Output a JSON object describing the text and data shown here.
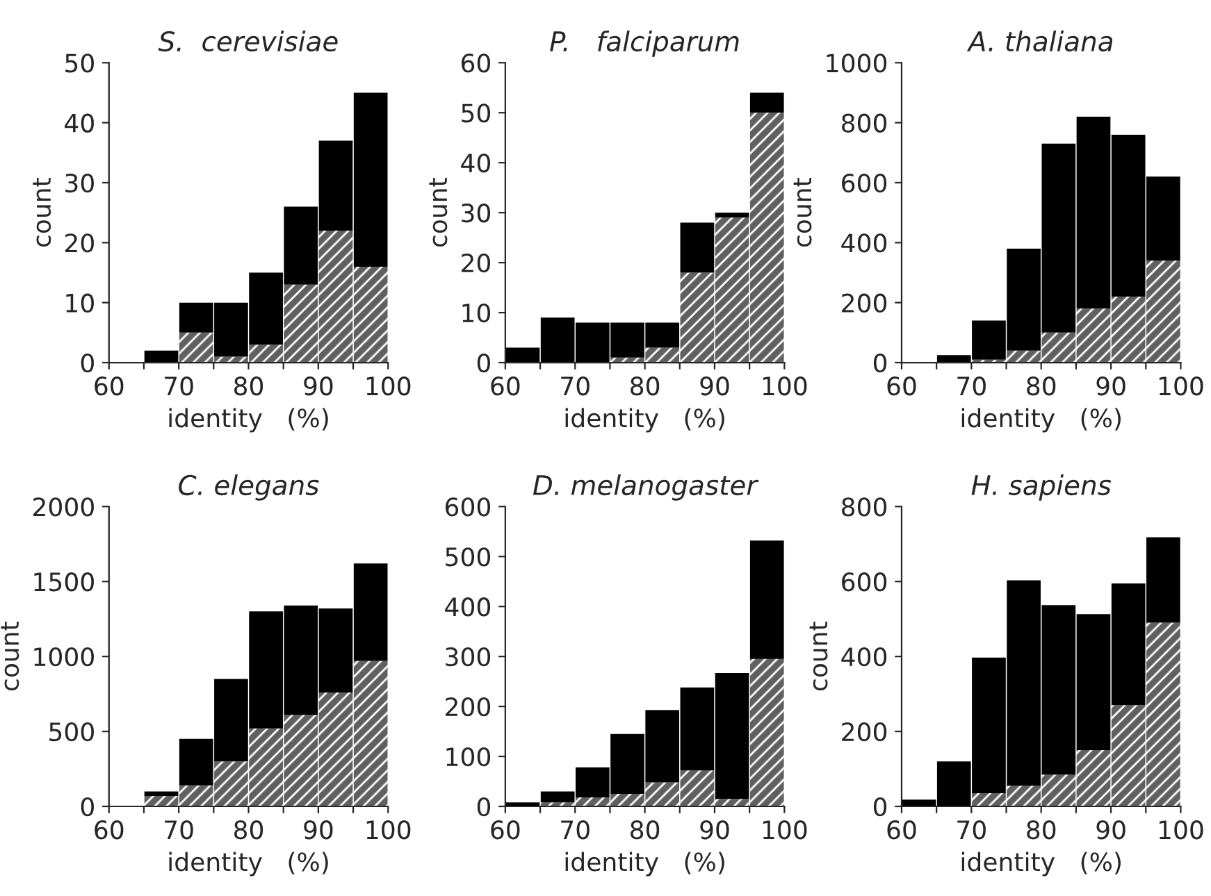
{
  "chart_data": [
    {
      "type": "bar",
      "title": "S.  cerevisiae",
      "xlabel": "identity   (%)",
      "ylabel": "count",
      "stacked": true,
      "x": [
        62.5,
        67.5,
        72.5,
        77.5,
        82.5,
        87.5,
        92.5,
        97.5
      ],
      "series": [
        {
          "color": "#606060",
          "values": [
            0,
            0,
            5,
            1,
            3,
            13,
            22,
            16
          ]
        },
        {
          "color": "#000000",
          "values": [
            0,
            2,
            5,
            9,
            12,
            13,
            15,
            29
          ]
        }
      ],
      "xlim": [
        60,
        100
      ],
      "xticks": [
        60,
        {
          "value": 65,
          "label": null
        },
        70,
        {
          "value": 75,
          "label": null
        },
        80,
        {
          "value": 85,
          "label": null
        },
        90,
        {
          "value": 95,
          "label": null
        },
        100
      ],
      "ylim": [
        0,
        50
      ],
      "yticks": [
        0,
        10,
        20,
        30,
        40,
        50
      ]
    },
    {
      "type": "bar",
      "title": "P.   falciparum",
      "xlabel": "identity   (%)",
      "ylabel": "count",
      "stacked": true,
      "x": [
        62.5,
        67.5,
        72.5,
        77.5,
        82.5,
        87.5,
        92.5,
        97.5
      ],
      "series": [
        {
          "color": "#606060",
          "values": [
            0,
            0,
            0,
            1,
            3,
            18,
            29,
            50
          ]
        },
        {
          "color": "#000000",
          "values": [
            3,
            9,
            8,
            7,
            5,
            10,
            1,
            4
          ]
        }
      ],
      "xlim": [
        60,
        100
      ],
      "xticks": [
        60,
        {
          "value": 65,
          "label": null
        },
        70,
        {
          "value": 75,
          "label": null
        },
        80,
        {
          "value": 85,
          "label": null
        },
        90,
        {
          "value": 95,
          "label": null
        },
        100
      ],
      "ylim": [
        0,
        60
      ],
      "yticks": [
        0,
        10,
        20,
        30,
        40,
        50,
        60
      ]
    },
    {
      "type": "bar",
      "title": "A. thaliana",
      "xlabel": "identity   (%)",
      "ylabel": "count",
      "stacked": true,
      "x": [
        62.5,
        67.5,
        72.5,
        77.5,
        82.5,
        87.5,
        92.5,
        97.5
      ],
      "series": [
        {
          "color": "#606060",
          "values": [
            0,
            0,
            10,
            40,
            100,
            180,
            220,
            340
          ]
        },
        {
          "color": "#000000",
          "values": [
            0,
            25,
            130,
            340,
            630,
            640,
            540,
            280
          ]
        }
      ],
      "xlim": [
        60,
        100
      ],
      "xticks": [
        60,
        {
          "value": 65,
          "label": null
        },
        70,
        {
          "value": 75,
          "label": null
        },
        80,
        {
          "value": 85,
          "label": null
        },
        90,
        {
          "value": 95,
          "label": null
        },
        100
      ],
      "ylim": [
        0,
        1000
      ],
      "yticks": [
        0,
        200,
        400,
        600,
        800,
        1000
      ]
    },
    {
      "type": "bar",
      "title": "C. elegans",
      "xlabel": "identity   (%)",
      "ylabel": "count",
      "stacked": true,
      "x": [
        62.5,
        67.5,
        72.5,
        77.5,
        82.5,
        87.5,
        92.5,
        97.5
      ],
      "series": [
        {
          "color": "#606060",
          "values": [
            0,
            70,
            140,
            300,
            520,
            610,
            760,
            970
          ]
        },
        {
          "color": "#000000",
          "values": [
            0,
            30,
            310,
            550,
            780,
            730,
            560,
            650
          ]
        }
      ],
      "xlim": [
        60,
        100
      ],
      "xticks": [
        60,
        {
          "value": 65,
          "label": null
        },
        70,
        {
          "value": 75,
          "label": null
        },
        80,
        {
          "value": 85,
          "label": null
        },
        90,
        {
          "value": 95,
          "label": null
        },
        100
      ],
      "ylim": [
        0,
        2000
      ],
      "yticks": [
        0,
        500,
        1000,
        1500,
        2000
      ]
    },
    {
      "type": "bar",
      "title": "D. melanogaster",
      "xlabel": "identity   (%)",
      "stacked": true,
      "x": [
        62.5,
        67.5,
        72.5,
        77.5,
        82.5,
        87.5,
        92.5,
        97.5
      ],
      "series": [
        {
          "color": "#606060",
          "values": [
            0,
            8,
            18,
            25,
            48,
            72,
            15,
            295
          ]
        },
        {
          "color": "#000000",
          "values": [
            8,
            22,
            60,
            120,
            145,
            166,
            252,
            237
          ]
        }
      ],
      "xlim": [
        60,
        100
      ],
      "xticks": [
        60,
        {
          "value": 65,
          "label": null
        },
        70,
        {
          "value": 75,
          "label": null
        },
        80,
        {
          "value": 85,
          "label": null
        },
        90,
        {
          "value": 95,
          "label": null
        },
        100
      ],
      "ylim": [
        0,
        600
      ],
      "yticks": [
        0,
        100,
        200,
        300,
        400,
        500,
        600
      ]
    },
    {
      "type": "bar",
      "title": "H. sapiens",
      "xlabel": "identity   (%)",
      "ylabel": "count",
      "stacked": true,
      "x": [
        62.5,
        67.5,
        72.5,
        77.5,
        82.5,
        87.5,
        92.5,
        97.5
      ],
      "series": [
        {
          "color": "#606060",
          "values": [
            0,
            0,
            35,
            55,
            85,
            150,
            270,
            490
          ]
        },
        {
          "color": "#000000",
          "values": [
            18,
            120,
            362,
            548,
            452,
            363,
            325,
            228
          ]
        }
      ],
      "xlim": [
        60,
        100
      ],
      "xticks": [
        60,
        {
          "value": 65,
          "label": null
        },
        70,
        {
          "value": 75,
          "label": null
        },
        80,
        {
          "value": 85,
          "label": null
        },
        90,
        {
          "value": 95,
          "label": null
        },
        100
      ],
      "ylim": [
        0,
        800
      ],
      "yticks": [
        0,
        200,
        400,
        600,
        800
      ]
    }
  ]
}
